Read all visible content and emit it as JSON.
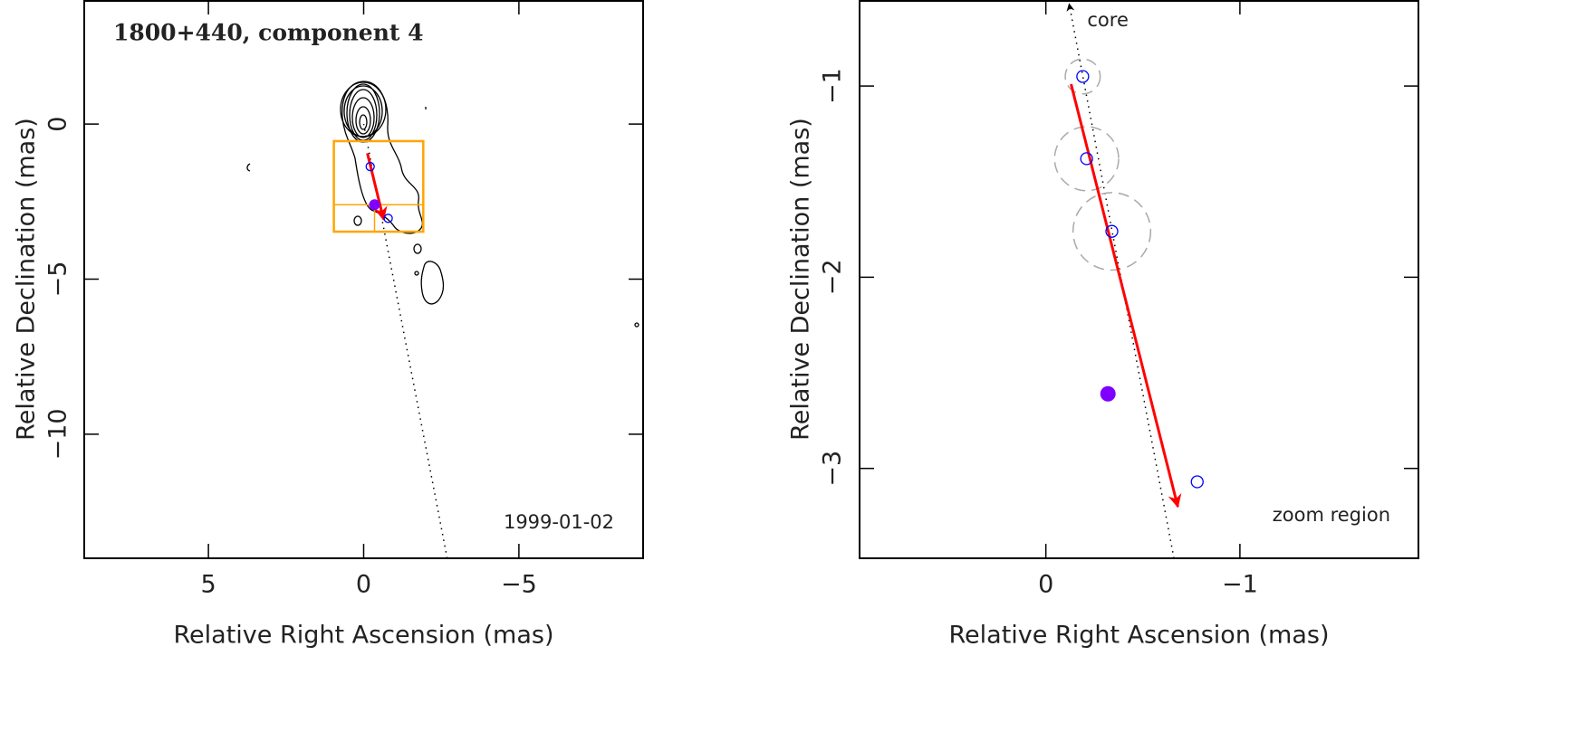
{
  "chart_data": [
    {
      "type": "scatter",
      "title": "1800+440, component 4",
      "annotation": "1999-01-02",
      "xlabel": "Relative Right Ascension (mas)",
      "ylabel": "Relative Declination (mas)",
      "xlim": [
        9,
        -9
      ],
      "ylim": [
        -14,
        4
      ],
      "xticks": [
        5,
        0,
        {
          "value": -5,
          "label": "−5"
        }
      ],
      "yticks": [
        0,
        {
          "value": -5,
          "label": "−5"
        },
        {
          "value": -10,
          "label": "−10"
        }
      ],
      "components": {
        "color": "#0000ff",
        "x": [
          -0.21,
          -0.79
        ],
        "y": [
          -1.37,
          -3.04
        ]
      },
      "highlight": {
        "color": "#7f00ff",
        "x": -0.35,
        "y": -2.6
      },
      "arrow": {
        "color": "#ff0000",
        "x": [
          -0.12,
          -0.64
        ],
        "y": [
          -0.94,
          -3.07
        ]
      },
      "track": {
        "x": [
          0,
          -2.69
        ],
        "y": [
          0,
          -14
        ]
      },
      "zoom_color": "#ffa500"
    },
    {
      "type": "scatter",
      "annotation": "zoom region",
      "core_label": "core",
      "xlabel": "Relative Right Ascension (mas)",
      "ylabel": "Relative Declination (mas)",
      "xlim": [
        0.96,
        -1.92
      ],
      "ylim": [
        -3.47,
        -0.55
      ],
      "xticks": [
        0,
        {
          "value": -1,
          "label": "−1"
        }
      ],
      "yticks": [
        {
          "value": -1,
          "label": "−1"
        },
        {
          "value": -2,
          "label": "−2"
        },
        {
          "value": -3,
          "label": "−3"
        }
      ],
      "components": {
        "color": "#0000ff",
        "x": [
          -0.19,
          -0.21,
          -0.34,
          -0.78
        ],
        "y": [
          -0.95,
          -1.38,
          -1.76,
          -3.07
        ],
        "errors": [
          0.09,
          0.165,
          0.2,
          null
        ]
      },
      "highlight": {
        "color": "#7f00ff",
        "x": -0.32,
        "y": -2.61
      },
      "arrow": {
        "color": "#ff0000",
        "x": [
          -0.13,
          -0.68
        ],
        "y": [
          -0.99,
          -3.2
        ]
      },
      "track": {
        "x": [
          -0.12,
          -0.66
        ],
        "y": [
          -0.57,
          -3.47
        ]
      }
    }
  ]
}
